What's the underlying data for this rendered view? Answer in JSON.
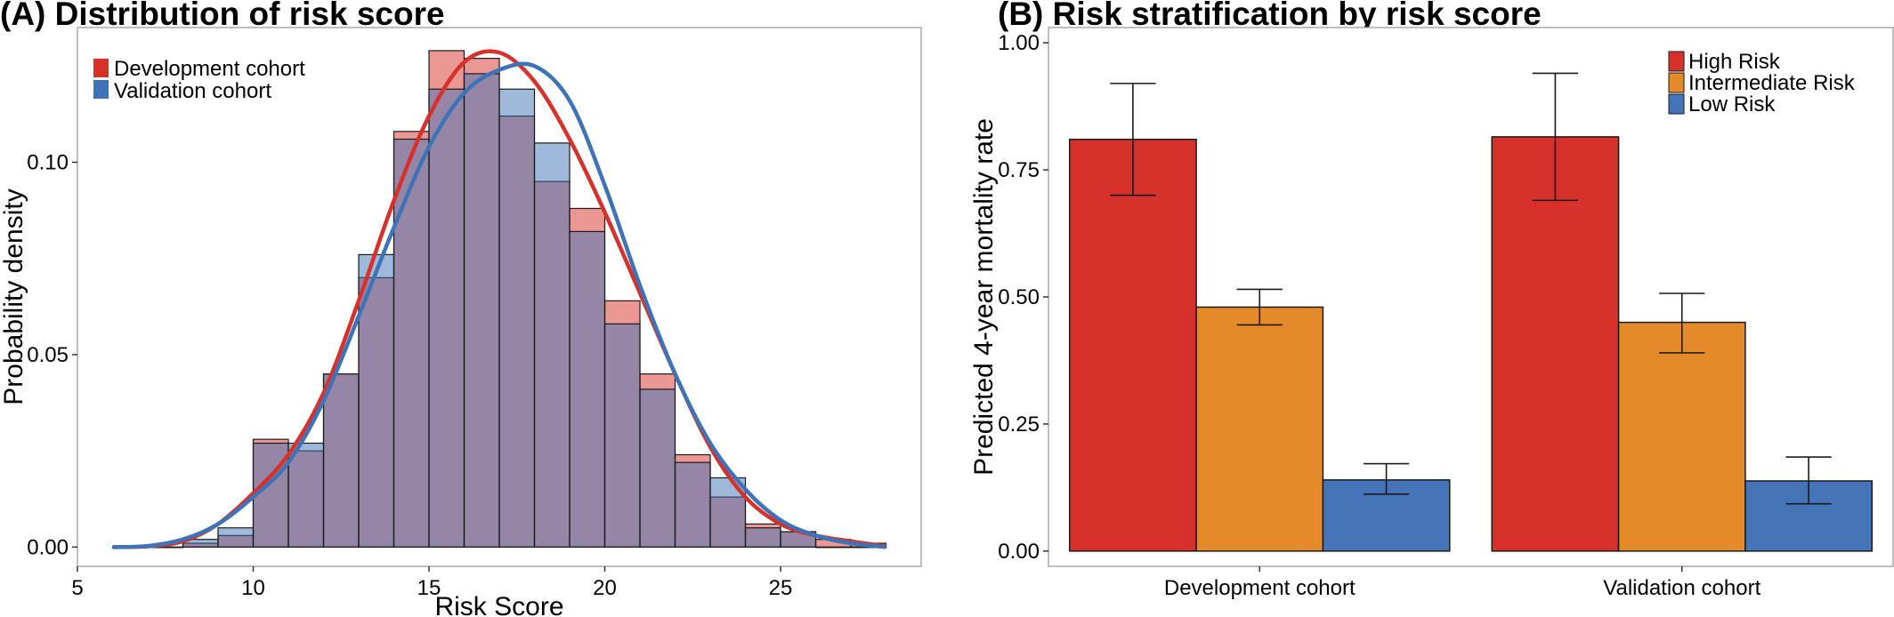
{
  "panel_a": {
    "chart_data": {
      "type": "histogram",
      "title": "(A) Distribution of risk score",
      "xlabel": "Risk Score",
      "ylabel": "Probability density",
      "xlim": [
        5,
        29
      ],
      "ylim": [
        -0.005,
        0.135
      ],
      "x_ticks": [
        5,
        10,
        15,
        20,
        25
      ],
      "x_tick_labels": [
        "5",
        "10",
        "15",
        "20",
        "25"
      ],
      "y_ticks": [
        0.0,
        0.05,
        0.1
      ],
      "y_tick_labels": [
        "0.00",
        "0.05",
        "0.10"
      ],
      "bin_width": 1,
      "bin_starts": [
        6,
        7,
        8,
        9,
        10,
        11,
        12,
        13,
        14,
        15,
        16,
        17,
        18,
        19,
        20,
        21,
        22,
        23,
        24,
        25,
        26,
        27
      ],
      "legend_position": "top-left",
      "series": [
        {
          "name": "Development cohort",
          "color": "#D7312C",
          "fill": "rgba(215,49,44,0.5)",
          "values": [
            0.0,
            0.0,
            0.001,
            0.003,
            0.028,
            0.025,
            0.045,
            0.07,
            0.108,
            0.129,
            0.127,
            0.112,
            0.095,
            0.088,
            0.064,
            0.045,
            0.024,
            0.013,
            0.006,
            0.004,
            0.002,
            0.001
          ],
          "density_curve": [
            [
              6.0,
              0.0
            ],
            [
              7.0,
              0.0002
            ],
            [
              8.0,
              0.0015
            ],
            [
              9.0,
              0.006
            ],
            [
              10.0,
              0.014
            ],
            [
              11.0,
              0.024
            ],
            [
              12.0,
              0.04
            ],
            [
              13.0,
              0.064
            ],
            [
              14.0,
              0.09
            ],
            [
              15.0,
              0.112
            ],
            [
              16.0,
              0.126
            ],
            [
              17.0,
              0.1285
            ],
            [
              18.0,
              0.121
            ],
            [
              19.0,
              0.106
            ],
            [
              20.0,
              0.087
            ],
            [
              21.0,
              0.066
            ],
            [
              22.0,
              0.045
            ],
            [
              23.0,
              0.026
            ],
            [
              24.0,
              0.013
            ],
            [
              25.0,
              0.006
            ],
            [
              26.0,
              0.003
            ],
            [
              27.0,
              0.0015
            ],
            [
              28.0,
              0.0002
            ]
          ]
        },
        {
          "name": "Validation cohort",
          "color": "#3F73B7",
          "fill": "rgba(63,115,183,0.5)",
          "values": [
            0.0,
            0.0,
            0.002,
            0.005,
            0.027,
            0.027,
            0.045,
            0.076,
            0.106,
            0.119,
            0.123,
            0.119,
            0.105,
            0.082,
            0.058,
            0.041,
            0.022,
            0.018,
            0.005,
            0.004,
            0.0,
            0.0
          ],
          "density_curve": [
            [
              6.0,
              0.0
            ],
            [
              7.0,
              0.0003
            ],
            [
              8.0,
              0.002
            ],
            [
              9.0,
              0.006
            ],
            [
              10.0,
              0.013
            ],
            [
              11.0,
              0.022
            ],
            [
              12.0,
              0.038
            ],
            [
              13.0,
              0.06
            ],
            [
              14.0,
              0.083
            ],
            [
              15.0,
              0.104
            ],
            [
              16.0,
              0.118
            ],
            [
              17.0,
              0.124
            ],
            [
              18.0,
              0.125
            ],
            [
              19.0,
              0.116
            ],
            [
              20.0,
              0.094
            ],
            [
              21.0,
              0.068
            ],
            [
              22.0,
              0.045
            ],
            [
              23.0,
              0.027
            ],
            [
              24.0,
              0.015
            ],
            [
              25.0,
              0.007
            ],
            [
              26.0,
              0.003
            ],
            [
              27.0,
              0.001
            ],
            [
              28.0,
              0.0
            ]
          ]
        }
      ]
    }
  },
  "panel_b": {
    "chart_data": {
      "type": "bar",
      "title": "(B) Risk stratification by risk score",
      "xlabel": "",
      "ylabel": "Predicted 4-year mortality rate",
      "ylim": [
        -0.03,
        1.03
      ],
      "y_ticks": [
        0.0,
        0.25,
        0.5,
        0.75,
        1.0
      ],
      "y_tick_labels": [
        "0.00",
        "0.25",
        "0.50",
        "0.75",
        "1.00"
      ],
      "categories": [
        "Development cohort",
        "Validation cohort"
      ],
      "legend_position": "top-right",
      "series": [
        {
          "name": "High Risk",
          "color": "#D7312C",
          "values": [
            0.81,
            0.815
          ],
          "error_low": [
            0.7,
            0.69
          ],
          "error_high": [
            0.92,
            0.94
          ]
        },
        {
          "name": "Intermediate Risk",
          "color": "#E48A2A",
          "values": [
            0.48,
            0.45
          ],
          "error_low": [
            0.445,
            0.39
          ],
          "error_high": [
            0.515,
            0.507
          ]
        },
        {
          "name": "Low Risk",
          "color": "#4575B8",
          "values": [
            0.14,
            0.138
          ],
          "error_low": [
            0.112,
            0.093
          ],
          "error_high": [
            0.172,
            0.185
          ]
        }
      ]
    }
  }
}
